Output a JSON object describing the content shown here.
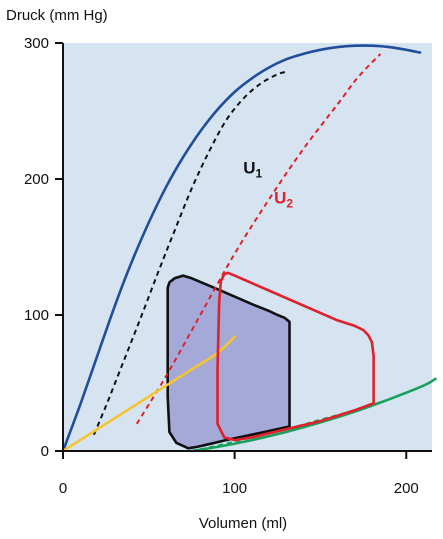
{
  "chart_data": {
    "type": "line",
    "title": "",
    "ylabel": "Druck (mm Hg)",
    "xlabel": "Volumen (ml)",
    "xlim": [
      0,
      215
    ],
    "ylim": [
      0,
      300
    ],
    "xticks": [
      0,
      100,
      200
    ],
    "yticks": [
      0,
      100,
      200,
      300
    ],
    "grid": false,
    "background_color": "#d6e4f2",
    "annotations": [
      {
        "id": "u1",
        "main": "U",
        "sub": "1",
        "x": 105,
        "y": 204,
        "color": "#111111"
      },
      {
        "id": "u2",
        "main": "U",
        "sub": "2",
        "x": 123,
        "y": 182,
        "color": "#e0202a"
      }
    ],
    "series": [
      {
        "id": "isovolumetric-max",
        "style": "solid",
        "color": "#1f4e9c",
        "points": [
          [
            0,
            0
          ],
          [
            10,
            34
          ],
          [
            20,
            70
          ],
          [
            30,
            106
          ],
          [
            40,
            139
          ],
          [
            50,
            168
          ],
          [
            60,
            194
          ],
          [
            70,
            216
          ],
          [
            80,
            235
          ],
          [
            90,
            251
          ],
          [
            100,
            264
          ],
          [
            110,
            274
          ],
          [
            120,
            282
          ],
          [
            130,
            288
          ],
          [
            140,
            292
          ],
          [
            150,
            295
          ],
          [
            160,
            297
          ],
          [
            170,
            298
          ],
          [
            180,
            298
          ],
          [
            190,
            297
          ],
          [
            200,
            295
          ],
          [
            208,
            293
          ]
        ]
      },
      {
        "id": "u1-line",
        "style": "dashed",
        "color": "#111111",
        "points": [
          [
            18,
            12
          ],
          [
            25,
            33
          ],
          [
            35,
            65
          ],
          [
            45,
            97
          ],
          [
            55,
            130
          ],
          [
            65,
            162
          ],
          [
            75,
            193
          ],
          [
            85,
            220
          ],
          [
            95,
            243
          ],
          [
            105,
            259
          ],
          [
            115,
            270
          ],
          [
            125,
            277
          ],
          [
            131,
            279
          ]
        ]
      },
      {
        "id": "u2-line",
        "style": "dashed",
        "color": "#e0202a",
        "points": [
          [
            43,
            20
          ],
          [
            60,
            55
          ],
          [
            80,
            100
          ],
          [
            100,
            145
          ],
          [
            120,
            185
          ],
          [
            140,
            222
          ],
          [
            160,
            255
          ],
          [
            172,
            275
          ],
          [
            185,
            292
          ]
        ]
      },
      {
        "id": "passive-filling",
        "style": "solid",
        "color": "#1aa05a",
        "points": [
          [
            75,
            0
          ],
          [
            90,
            3
          ],
          [
            110,
            8
          ],
          [
            130,
            14
          ],
          [
            150,
            21
          ],
          [
            170,
            29
          ],
          [
            190,
            38
          ],
          [
            210,
            48
          ],
          [
            217,
            53
          ]
        ]
      },
      {
        "id": "passive-dashed",
        "style": "dashed",
        "color": "#1aa05a",
        "points": [
          [
            75,
            0
          ],
          [
            90,
            4
          ],
          [
            110,
            10
          ],
          [
            130,
            16
          ],
          [
            150,
            23
          ],
          [
            170,
            30
          ],
          [
            180,
            35
          ]
        ]
      },
      {
        "id": "yellow-curve",
        "style": "solid",
        "color": "#f5c531",
        "points": [
          [
            0,
            0
          ],
          [
            15,
            12
          ],
          [
            30,
            24
          ],
          [
            45,
            36
          ],
          [
            60,
            48
          ],
          [
            75,
            60
          ],
          [
            90,
            72
          ],
          [
            100,
            84
          ]
        ]
      },
      {
        "id": "red-loop",
        "style": "solid",
        "color": "#e0202a",
        "closed": true,
        "points": [
          [
            94,
            10
          ],
          [
            90,
            20
          ],
          [
            90,
            60
          ],
          [
            91,
            110
          ],
          [
            92,
            125
          ],
          [
            94,
            130
          ],
          [
            96,
            131
          ],
          [
            100,
            129
          ],
          [
            160,
            96
          ],
          [
            170,
            92
          ],
          [
            175,
            89
          ],
          [
            178,
            85
          ],
          [
            180,
            80
          ],
          [
            181,
            70
          ],
          [
            181,
            35
          ],
          [
            170,
            30
          ],
          [
            150,
            22
          ],
          [
            130,
            16
          ],
          [
            110,
            10
          ],
          [
            100,
            8
          ]
        ]
      },
      {
        "id": "black-loop",
        "style": "solid",
        "color": "#111111",
        "fill": "#a4a9d7",
        "closed": true,
        "points": [
          [
            73,
            2
          ],
          [
            66,
            6
          ],
          [
            62,
            14
          ],
          [
            61,
            40
          ],
          [
            61,
            80
          ],
          [
            61,
            120
          ],
          [
            62,
            124
          ],
          [
            65,
            127
          ],
          [
            70,
            129
          ],
          [
            75,
            127
          ],
          [
            90,
            119
          ],
          [
            110,
            108
          ],
          [
            120,
            103
          ],
          [
            125,
            100
          ],
          [
            129,
            98
          ],
          [
            132,
            95
          ],
          [
            132,
            85
          ],
          [
            132,
            40
          ],
          [
            132,
            18
          ],
          [
            125,
            16
          ],
          [
            110,
            12
          ],
          [
            95,
            8
          ],
          [
            85,
            5
          ],
          [
            78,
            3
          ]
        ]
      }
    ]
  }
}
